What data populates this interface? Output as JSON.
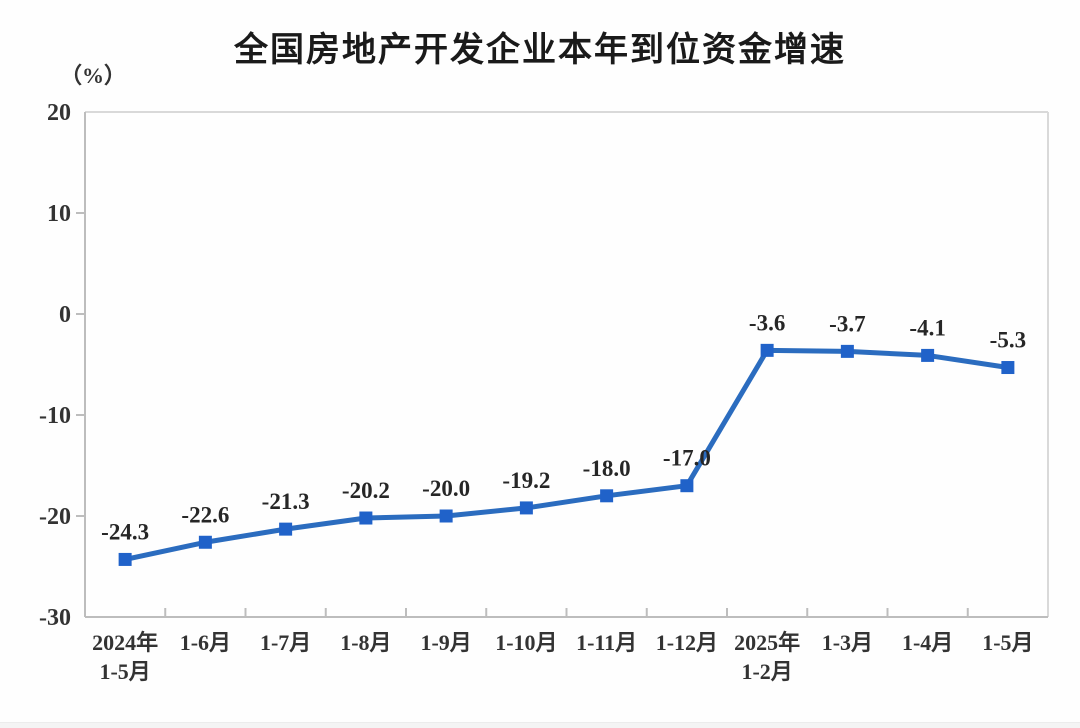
{
  "chart_data": {
    "type": "line",
    "title": "全国房地产开发企业本年到位资金增速",
    "unit_label": "（%）",
    "categories": [
      "2024年\n1-5月",
      "1-6月",
      "1-7月",
      "1-8月",
      "1-9月",
      "1-10月",
      "1-11月",
      "1-12月",
      "2025年\n1-2月",
      "1-3月",
      "1-4月",
      "1-5月"
    ],
    "values": [
      -24.3,
      -22.6,
      -21.3,
      -20.2,
      -20.0,
      -19.2,
      -18.0,
      -17.0,
      -3.6,
      -3.7,
      -4.1,
      -5.3
    ],
    "data_labels": [
      "-24.3",
      "-22.6",
      "-21.3",
      "-20.2",
      "-20.0",
      "-19.2",
      "-18.0",
      "-17.0",
      "-3.6",
      "-3.7",
      "-4.1",
      "-5.3"
    ],
    "ylim": [
      -30,
      20
    ],
    "yticks": [
      20,
      10,
      0,
      -10,
      -20,
      -30
    ],
    "grid": false,
    "legend": "none",
    "marker_shape": "square",
    "colors": {
      "line": "#2b6cbf",
      "marker": "#2062c9",
      "data_label": "#262626",
      "axis": "#bdbdbd",
      "border": "#d9d9d9",
      "tick_label": "#333333",
      "title": "#1a1a1a",
      "background": "#fefefe"
    }
  }
}
